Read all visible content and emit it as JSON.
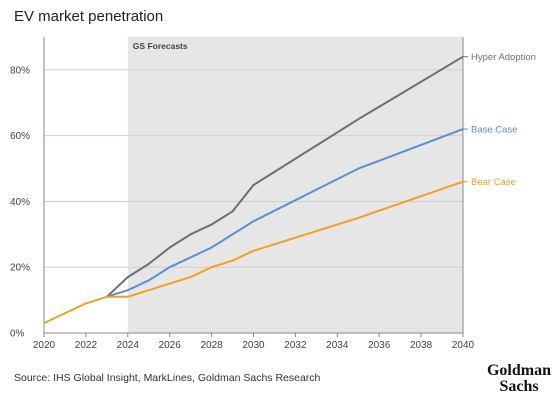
{
  "chart_data": {
    "type": "line",
    "title": "EV market penetration",
    "xlabel": "",
    "ylabel": "",
    "xlim": [
      2020,
      2040
    ],
    "ylim": [
      0,
      90
    ],
    "x_ticks": [
      "2020",
      "2022",
      "2024",
      "2026",
      "2028",
      "2030",
      "2032",
      "2034",
      "2036",
      "2038",
      "2040"
    ],
    "y_ticks": [
      {
        "value": 0,
        "label": "0%"
      },
      {
        "value": 20,
        "label": "20%"
      },
      {
        "value": 40,
        "label": "40%"
      },
      {
        "value": 60,
        "label": "60%"
      },
      {
        "value": 80,
        "label": "80%"
      }
    ],
    "grid": "horizontal",
    "shaded_region": {
      "label": "GS Forecasts",
      "x_start": 2024,
      "x_end": 2040,
      "color": "#e6e6e6"
    },
    "series": [
      {
        "name": "Hyper Adoption",
        "color": "#6e6e6e",
        "x": [
          2023,
          2024,
          2025,
          2026,
          2027,
          2028,
          2029,
          2030,
          2035,
          2040
        ],
        "values": [
          11,
          17,
          21,
          26,
          30,
          33,
          37,
          45,
          65,
          84
        ]
      },
      {
        "name": "Base Case",
        "color": "#5b8dd4",
        "x": [
          2023,
          2024,
          2025,
          2026,
          2028,
          2030,
          2035,
          2040
        ],
        "values": [
          11,
          13,
          16,
          20,
          26,
          34,
          50,
          62
        ]
      },
      {
        "name": "Bear Case",
        "color": "#f0a01e",
        "x": [
          2020,
          2022,
          2023,
          2024,
          2025,
          2027,
          2028,
          2029,
          2030,
          2035,
          2040
        ],
        "values": [
          3,
          9,
          11,
          11,
          13,
          17,
          20,
          22,
          25,
          35,
          46
        ]
      }
    ],
    "source": "Source: IHS Global Insight, MarkLines, Goldman Sachs Research",
    "logo": [
      "Goldman",
      "Sachs"
    ]
  }
}
